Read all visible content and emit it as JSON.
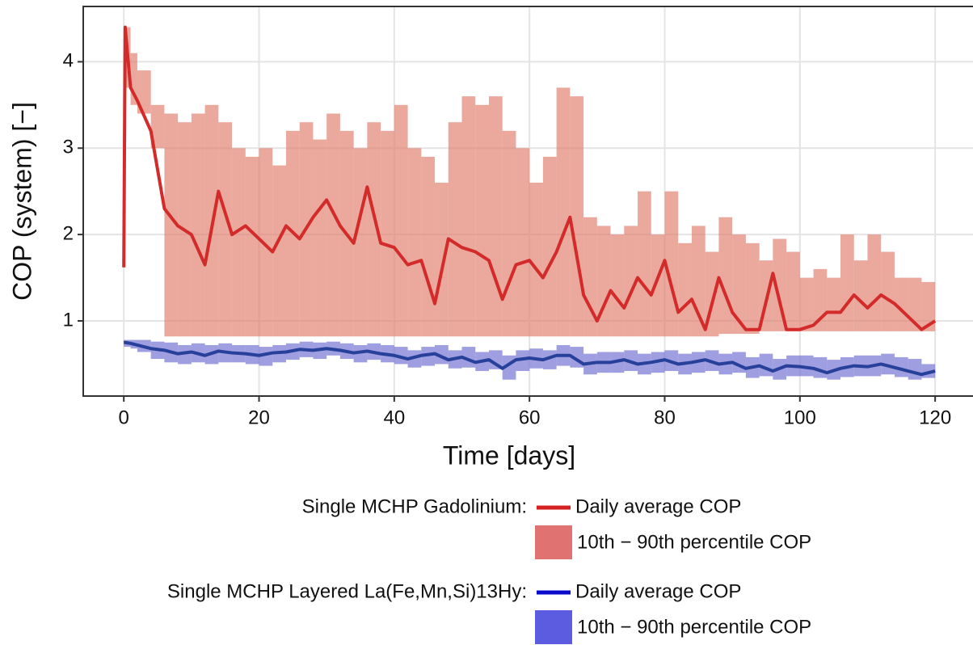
{
  "chart_data": {
    "type": "line",
    "x_label": "Time [days]",
    "y_label": "COP (system) [−]",
    "xlim": [
      -6,
      125.6
    ],
    "ylim": [
      0.13,
      4.64
    ],
    "xticks": [
      0,
      20,
      40,
      60,
      80,
      100,
      120
    ],
    "yticks": [
      1,
      2,
      3,
      4
    ],
    "grid": true,
    "x": [
      0,
      0.2,
      1,
      2,
      4,
      6,
      8,
      10,
      12,
      14,
      16,
      18,
      20,
      22,
      24,
      26,
      28,
      30,
      32,
      34,
      36,
      38,
      40,
      42,
      44,
      46,
      48,
      50,
      52,
      54,
      56,
      58,
      60,
      62,
      64,
      66,
      68,
      70,
      72,
      74,
      76,
      78,
      80,
      82,
      84,
      86,
      88,
      90,
      92,
      94,
      96,
      98,
      100,
      102,
      104,
      106,
      108,
      110,
      112,
      114,
      116,
      118,
      120
    ],
    "groups": [
      {
        "title": "Single MCHP Gadolinium:",
        "line": {
          "name": "Daily average COP",
          "color": "#d32a2a",
          "legend_color": "#d42020",
          "values": [
            1.62,
            4.4,
            3.7,
            3.55,
            3.2,
            2.3,
            2.1,
            2.0,
            1.65,
            2.5,
            2.0,
            2.1,
            1.95,
            1.8,
            2.1,
            1.95,
            2.2,
            2.4,
            2.1,
            1.9,
            2.55,
            1.9,
            1.85,
            1.65,
            1.7,
            1.2,
            1.95,
            1.85,
            1.8,
            1.7,
            1.25,
            1.65,
            1.7,
            1.5,
            1.8,
            2.2,
            1.3,
            1.0,
            1.35,
            1.15,
            1.5,
            1.3,
            1.7,
            1.1,
            1.25,
            0.9,
            1.5,
            1.1,
            0.9,
            0.9,
            1.55,
            0.9,
            0.9,
            0.95,
            1.1,
            1.1,
            1.3,
            1.15,
            1.3,
            1.2,
            1.05,
            0.9,
            1.0
          ]
        },
        "band": {
          "name": "10th − 90th percentile COP",
          "color": "#e07a68",
          "legend_color": "#e07272",
          "lower": [
            1.62,
            3.7,
            3.5,
            3.4,
            3.0,
            0.82,
            0.82,
            0.82,
            0.82,
            0.82,
            0.82,
            0.82,
            0.82,
            0.82,
            0.82,
            0.82,
            0.82,
            0.82,
            0.82,
            0.82,
            0.82,
            0.82,
            0.82,
            0.82,
            0.82,
            0.82,
            0.82,
            0.82,
            0.82,
            0.82,
            0.82,
            0.82,
            0.82,
            0.82,
            0.82,
            0.82,
            0.82,
            0.82,
            0.82,
            0.82,
            0.82,
            0.82,
            0.82,
            0.82,
            0.82,
            0.82,
            0.85,
            0.85,
            0.85,
            0.88,
            0.88,
            0.88,
            0.88,
            0.88,
            0.88,
            0.88,
            0.88,
            0.88,
            0.88,
            0.88,
            0.88,
            0.88,
            0.88
          ],
          "upper": [
            4.4,
            4.4,
            4.1,
            3.9,
            3.5,
            3.4,
            3.3,
            3.4,
            3.5,
            3.3,
            3.0,
            2.9,
            3.0,
            2.8,
            3.2,
            3.3,
            3.1,
            3.4,
            3.2,
            3.0,
            3.3,
            3.2,
            3.5,
            3.0,
            2.9,
            2.6,
            3.3,
            3.6,
            3.5,
            3.6,
            3.2,
            3.0,
            2.6,
            2.9,
            3.7,
            3.6,
            2.2,
            2.1,
            2.0,
            2.1,
            2.5,
            2.0,
            2.5,
            1.9,
            2.1,
            1.8,
            2.2,
            2.0,
            1.9,
            1.7,
            1.95,
            1.8,
            1.5,
            1.6,
            1.5,
            2.0,
            1.7,
            2.0,
            1.8,
            1.5,
            1.5,
            1.45,
            1.4
          ]
        }
      },
      {
        "title": "Single MCHP Layered La(Fe,Mn,Si)13Hy:",
        "line": {
          "name": "Daily average COP",
          "color": "#27409a",
          "legend_color": "#0a0acc",
          "values": [
            0.75,
            0.75,
            0.74,
            0.72,
            0.68,
            0.66,
            0.62,
            0.64,
            0.6,
            0.65,
            0.63,
            0.62,
            0.6,
            0.63,
            0.64,
            0.67,
            0.66,
            0.68,
            0.66,
            0.63,
            0.65,
            0.62,
            0.6,
            0.56,
            0.6,
            0.62,
            0.55,
            0.58,
            0.52,
            0.55,
            0.45,
            0.55,
            0.57,
            0.55,
            0.6,
            0.6,
            0.5,
            0.52,
            0.52,
            0.55,
            0.5,
            0.52,
            0.55,
            0.5,
            0.52,
            0.55,
            0.5,
            0.52,
            0.45,
            0.48,
            0.42,
            0.48,
            0.47,
            0.45,
            0.4,
            0.45,
            0.48,
            0.47,
            0.5,
            0.46,
            0.42,
            0.38,
            0.42
          ]
        },
        "band": {
          "name": "10th − 90th percentile COP",
          "color": "#6a6ad0",
          "legend_color": "#5c5ce0",
          "lower": [
            0.7,
            0.7,
            0.68,
            0.64,
            0.56,
            0.52,
            0.5,
            0.52,
            0.5,
            0.52,
            0.52,
            0.5,
            0.48,
            0.52,
            0.55,
            0.58,
            0.56,
            0.6,
            0.56,
            0.52,
            0.55,
            0.52,
            0.5,
            0.46,
            0.48,
            0.5,
            0.45,
            0.46,
            0.42,
            0.44,
            0.32,
            0.42,
            0.45,
            0.44,
            0.48,
            0.46,
            0.38,
            0.4,
            0.4,
            0.42,
            0.38,
            0.4,
            0.42,
            0.38,
            0.4,
            0.42,
            0.38,
            0.4,
            0.34,
            0.36,
            0.32,
            0.36,
            0.36,
            0.34,
            0.32,
            0.35,
            0.36,
            0.36,
            0.38,
            0.35,
            0.32,
            0.34,
            0.36
          ],
          "upper": [
            0.78,
            0.78,
            0.78,
            0.78,
            0.76,
            0.75,
            0.72,
            0.74,
            0.72,
            0.74,
            0.72,
            0.72,
            0.7,
            0.72,
            0.74,
            0.76,
            0.75,
            0.76,
            0.74,
            0.72,
            0.74,
            0.72,
            0.7,
            0.66,
            0.7,
            0.72,
            0.66,
            0.7,
            0.64,
            0.66,
            0.6,
            0.66,
            0.68,
            0.66,
            0.72,
            0.7,
            0.62,
            0.64,
            0.64,
            0.66,
            0.62,
            0.64,
            0.66,
            0.62,
            0.64,
            0.66,
            0.62,
            0.64,
            0.58,
            0.62,
            0.56,
            0.6,
            0.6,
            0.58,
            0.55,
            0.58,
            0.6,
            0.6,
            0.62,
            0.58,
            0.56,
            0.5,
            0.7
          ]
        }
      }
    ]
  }
}
